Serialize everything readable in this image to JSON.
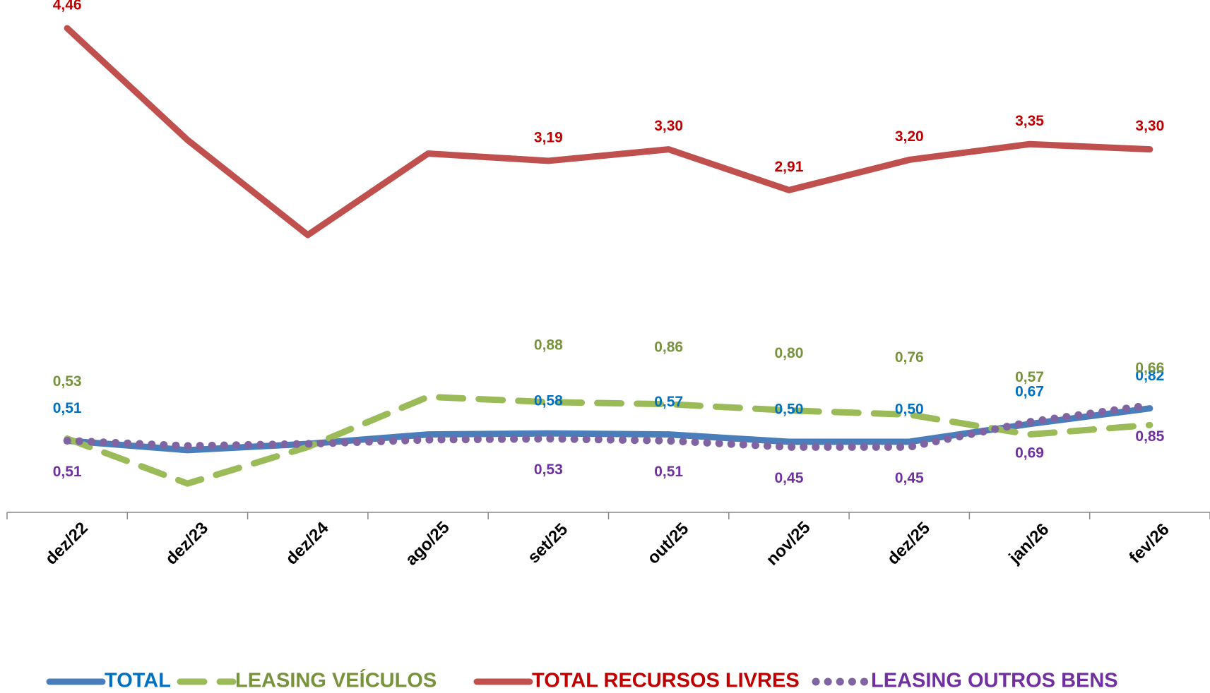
{
  "chart_data": {
    "type": "line",
    "categories": [
      "dez/22",
      "dez/23",
      "dez/24",
      "ago/25",
      "set/25",
      "out/25",
      "nov/25",
      "dez/25",
      "jan/26",
      "fev/26"
    ],
    "series": [
      {
        "name": "TOTAL",
        "color": "#4a7ebb",
        "label_color": "#0070c0",
        "dash": "solid",
        "values": [
          0.51,
          0.42,
          0.48,
          0.57,
          0.58,
          0.57,
          0.5,
          0.5,
          0.67,
          0.82
        ],
        "value_labels": [
          "0,51",
          null,
          null,
          null,
          "0,58",
          "0,57",
          "0,50",
          "0,50",
          "0,67",
          "0,82"
        ]
      },
      {
        "name": "LEASING VEÍCULOS",
        "color": "#9bbb59",
        "label_color": "#77933c",
        "dash": "dashed",
        "values": [
          0.53,
          0.1,
          0.45,
          0.93,
          0.88,
          0.86,
          0.8,
          0.76,
          0.57,
          0.66
        ],
        "value_labels": [
          "0,53",
          null,
          null,
          null,
          "0,88",
          "0,86",
          "0,80",
          "0,76",
          "0,57",
          "0,66"
        ]
      },
      {
        "name": "TOTAL RECURSOS LIVRES",
        "color": "#c0504d",
        "label_color": "#c00000",
        "dash": "solid",
        "values": [
          4.46,
          3.39,
          2.48,
          3.26,
          3.19,
          3.3,
          2.91,
          3.2,
          3.35,
          3.3
        ],
        "value_labels": [
          "4,46",
          null,
          null,
          null,
          "3,19",
          "3,30",
          "2,91",
          "3,20",
          "3,35",
          "3,30"
        ]
      },
      {
        "name": "LEASING OUTROS BENS",
        "color": "#8064a2",
        "label_color": "#7030a0",
        "dash": "dotted",
        "values": [
          0.51,
          0.46,
          0.48,
          0.52,
          0.53,
          0.51,
          0.45,
          0.45,
          0.69,
          0.85
        ],
        "value_labels": [
          "0,51",
          null,
          null,
          null,
          "0,53",
          "0,51",
          "0,45",
          "0,45",
          "0,69",
          "0,85"
        ]
      }
    ]
  }
}
